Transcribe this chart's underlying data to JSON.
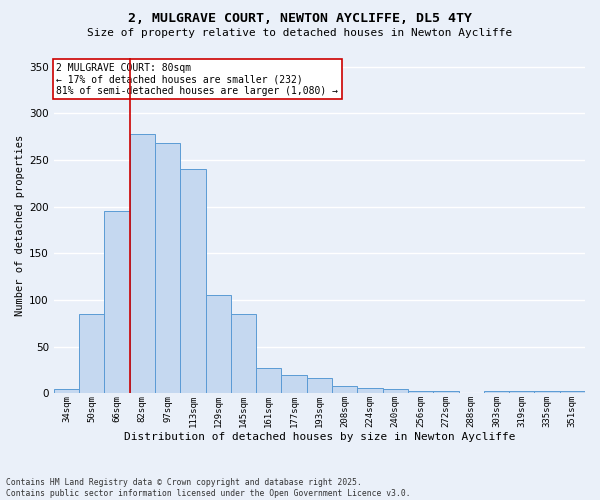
{
  "title_line1": "2, MULGRAVE COURT, NEWTON AYCLIFFE, DL5 4TY",
  "title_line2": "Size of property relative to detached houses in Newton Aycliffe",
  "xlabel": "Distribution of detached houses by size in Newton Aycliffe",
  "ylabel": "Number of detached properties",
  "annotation_line1": "2 MULGRAVE COURT: 80sqm",
  "annotation_line2": "← 17% of detached houses are smaller (232)",
  "annotation_line3": "81% of semi-detached houses are larger (1,080) →",
  "footer_line1": "Contains HM Land Registry data © Crown copyright and database right 2025.",
  "footer_line2": "Contains public sector information licensed under the Open Government Licence v3.0.",
  "categories": [
    "34sqm",
    "50sqm",
    "66sqm",
    "82sqm",
    "97sqm",
    "113sqm",
    "129sqm",
    "145sqm",
    "161sqm",
    "177sqm",
    "193sqm",
    "208sqm",
    "224sqm",
    "240sqm",
    "256sqm",
    "272sqm",
    "288sqm",
    "303sqm",
    "319sqm",
    "335sqm",
    "351sqm"
  ],
  "values": [
    5,
    85,
    195,
    278,
    268,
    240,
    105,
    85,
    27,
    20,
    16,
    8,
    6,
    5,
    3,
    2,
    0,
    3,
    3,
    2,
    2
  ],
  "bar_color": "#c5d8f0",
  "bar_edge_color": "#5b9bd5",
  "vline_color": "#cc0000",
  "annotation_box_color": "#cc0000",
  "bg_color": "#eaf0f9",
  "plot_bg_color": "#eaf0f9",
  "grid_color": "#ffffff",
  "ylim": [
    0,
    360
  ],
  "yticks": [
    0,
    50,
    100,
    150,
    200,
    250,
    300,
    350
  ]
}
